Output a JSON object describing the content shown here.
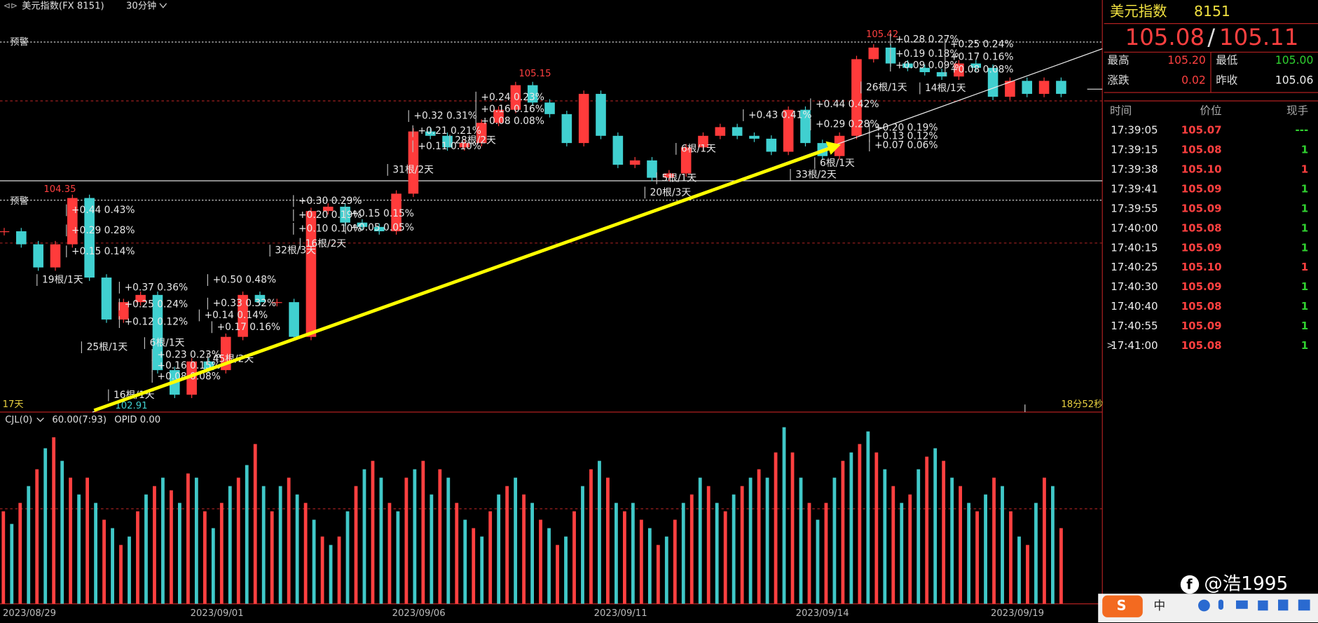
{
  "toolbar": {
    "title": "美元指数(FX 8151)",
    "period": "30分钟"
  },
  "chart_data": [
    {
      "type": "candles",
      "colors": [
        "#ff3b3b",
        "#40d0d0"
      ],
      "ylim": [
        102.85,
        105.6
      ],
      "values": [
        104.1,
        104.01,
        103.85,
        104.01,
        104.33,
        103.78,
        103.49,
        103.61,
        103.66,
        103.14,
        102.97,
        103.2,
        103.14,
        103.37,
        103.66,
        103.61,
        103.61,
        103.37,
        104.24,
        104.27,
        104.16,
        104.13,
        104.1,
        104.36,
        104.79,
        104.76,
        104.68,
        104.71,
        104.85,
        104.94,
        105.11,
        104.99,
        104.91,
        104.71,
        105.05,
        104.76,
        104.56,
        104.59,
        104.47,
        104.5,
        104.68,
        104.76,
        104.82,
        104.76,
        104.74,
        104.65,
        104.94,
        104.71,
        104.62,
        104.76,
        105.29,
        105.37,
        105.26,
        105.23,
        105.2,
        105.17,
        105.26,
        105.23,
        105.03,
        105.14,
        105.05,
        105.14,
        105.05
      ],
      "extremes": [
        105.42,
        105.15,
        104.35,
        102.91
      ],
      "alerts": [
        "预警",
        "预警"
      ],
      "elapsed": "17天",
      "countdown": "18分52秒",
      "annotations": [
        "+0.44 0.43%",
        "+0.29 0.28%",
        "+0.15 0.14%",
        "19根/1天",
        "+0.37 0.36%",
        "+0.25 0.24%",
        "+0.12 0.12%",
        "25根/1天",
        "6根/1天",
        "+0.23 0.23%",
        "+0.16 0.15%",
        "+0.08 0.08%",
        "16根/1天",
        "+0.50 0.48%",
        "+0.33 0.32%",
        "+0.14 0.14%",
        "+0.17 0.16%",
        "45根/2天",
        "+0.30 0.29%",
        "+0.20 0.19%",
        "+0.10 0.10%",
        "32根/3天",
        "16根/2天",
        "+0.15 0.15%",
        "+0.05 0.05%",
        "+0.32 0.31%",
        "+0.21 0.21%",
        "+0.11 0.10%",
        "31根/2天",
        "28根/2天",
        "+0.24 0.23%",
        "+0.16 0.16%",
        "+0.08 0.08%",
        "6根/1天",
        "5根/1天",
        "20根/3天",
        "+0.43 0.41%",
        "+0.44 0.42%",
        "+0.29 0.28%",
        "+0.20 0.19%",
        "+0.13 0.12%",
        "+0.07 0.06%",
        "33根/2天",
        "6根/1天",
        "+0.28 0.27%",
        "+0.19 0.18%",
        "+0.09 0.09%",
        "26根/1天",
        "+0.25 0.24%",
        "+0.17 0.16%",
        "+0.08 0.08%",
        "14根/1天"
      ],
      "x_labels": [
        "2023/08/29",
        "2023/09/01",
        "2023/09/06",
        "2023/09/11",
        "2023/09/14",
        "2023/09/19"
      ]
    },
    {
      "type": "bar",
      "title": "CJL(0)",
      "params": "60.00(7:93)",
      "opid": "OPID 0.00",
      "colors": [
        "#ff4040",
        "#40c8c8"
      ],
      "ylim": [
        0,
        228
      ],
      "values": [
        110,
        95,
        120,
        140,
        160,
        185,
        198,
        170,
        150,
        130,
        150,
        120,
        100,
        90,
        70,
        80,
        110,
        130,
        140,
        150,
        135,
        120,
        155,
        150,
        110,
        90,
        120,
        140,
        150,
        165,
        190,
        140,
        110,
        140,
        150,
        130,
        120,
        100,
        80,
        70,
        80,
        110,
        140,
        160,
        170,
        150,
        120,
        110,
        150,
        160,
        170,
        130,
        160,
        150,
        120,
        100,
        90,
        80,
        110,
        130,
        140,
        150,
        130,
        120,
        100,
        90,
        70,
        80,
        110,
        140,
        160,
        170,
        150,
        120,
        110,
        120,
        100,
        90,
        70,
        80,
        100,
        120,
        130,
        150,
        140,
        120,
        110,
        130,
        140,
        150,
        160,
        150,
        180,
        210,
        180,
        150,
        120,
        100,
        120,
        150,
        170,
        180,
        190,
        205,
        180,
        160,
        140,
        120,
        130,
        160,
        175,
        185,
        170,
        150,
        140,
        120,
        110,
        130,
        150,
        140,
        110,
        80,
        70,
        120,
        150,
        140,
        90
      ]
    }
  ],
  "quote_panel": {
    "name": "美元指数",
    "code": "8151",
    "bid": "105.08",
    "sep": "/",
    "ask": "105.11",
    "stats": [
      [
        "最高",
        "105.20",
        "最低",
        "105.00"
      ],
      [
        "涨跌",
        "0.02",
        "昨收",
        "105.06"
      ]
    ],
    "headers": [
      "时间",
      "价位",
      "现手"
    ],
    "rows": [
      {
        "time": "17:39:05",
        "price": "105.07",
        "volume": "---",
        "color": "#30d030"
      },
      {
        "time": "17:39:15",
        "price": "105.08",
        "volume": "1",
        "color": "#30d030"
      },
      {
        "time": "17:39:38",
        "price": "105.10",
        "volume": "1",
        "color": "#ff4040"
      },
      {
        "time": "17:39:41",
        "price": "105.09",
        "volume": "1",
        "color": "#30d030"
      },
      {
        "time": "17:39:55",
        "price": "105.09",
        "volume": "1",
        "color": "#30d030"
      },
      {
        "time": "17:40:00",
        "price": "105.08",
        "volume": "1",
        "color": "#30d030"
      },
      {
        "time": "17:40:15",
        "price": "105.09",
        "volume": "1",
        "color": "#30d030"
      },
      {
        "time": "17:40:25",
        "price": "105.10",
        "volume": "1",
        "color": "#ff4040"
      },
      {
        "time": "17:40:30",
        "price": "105.09",
        "volume": "1",
        "color": "#30d030"
      },
      {
        "time": "17:40:40",
        "price": "105.08",
        "volume": "1",
        "color": "#30d030"
      },
      {
        "time": "17:40:55",
        "price": "105.09",
        "volume": "1",
        "color": "#30d030"
      },
      {
        "time": "17:41:00",
        "price": "105.08",
        "volume": "1",
        "color": "#30d030"
      }
    ]
  },
  "watermark": "@浩1995",
  "tray": {
    "ime": "中"
  }
}
